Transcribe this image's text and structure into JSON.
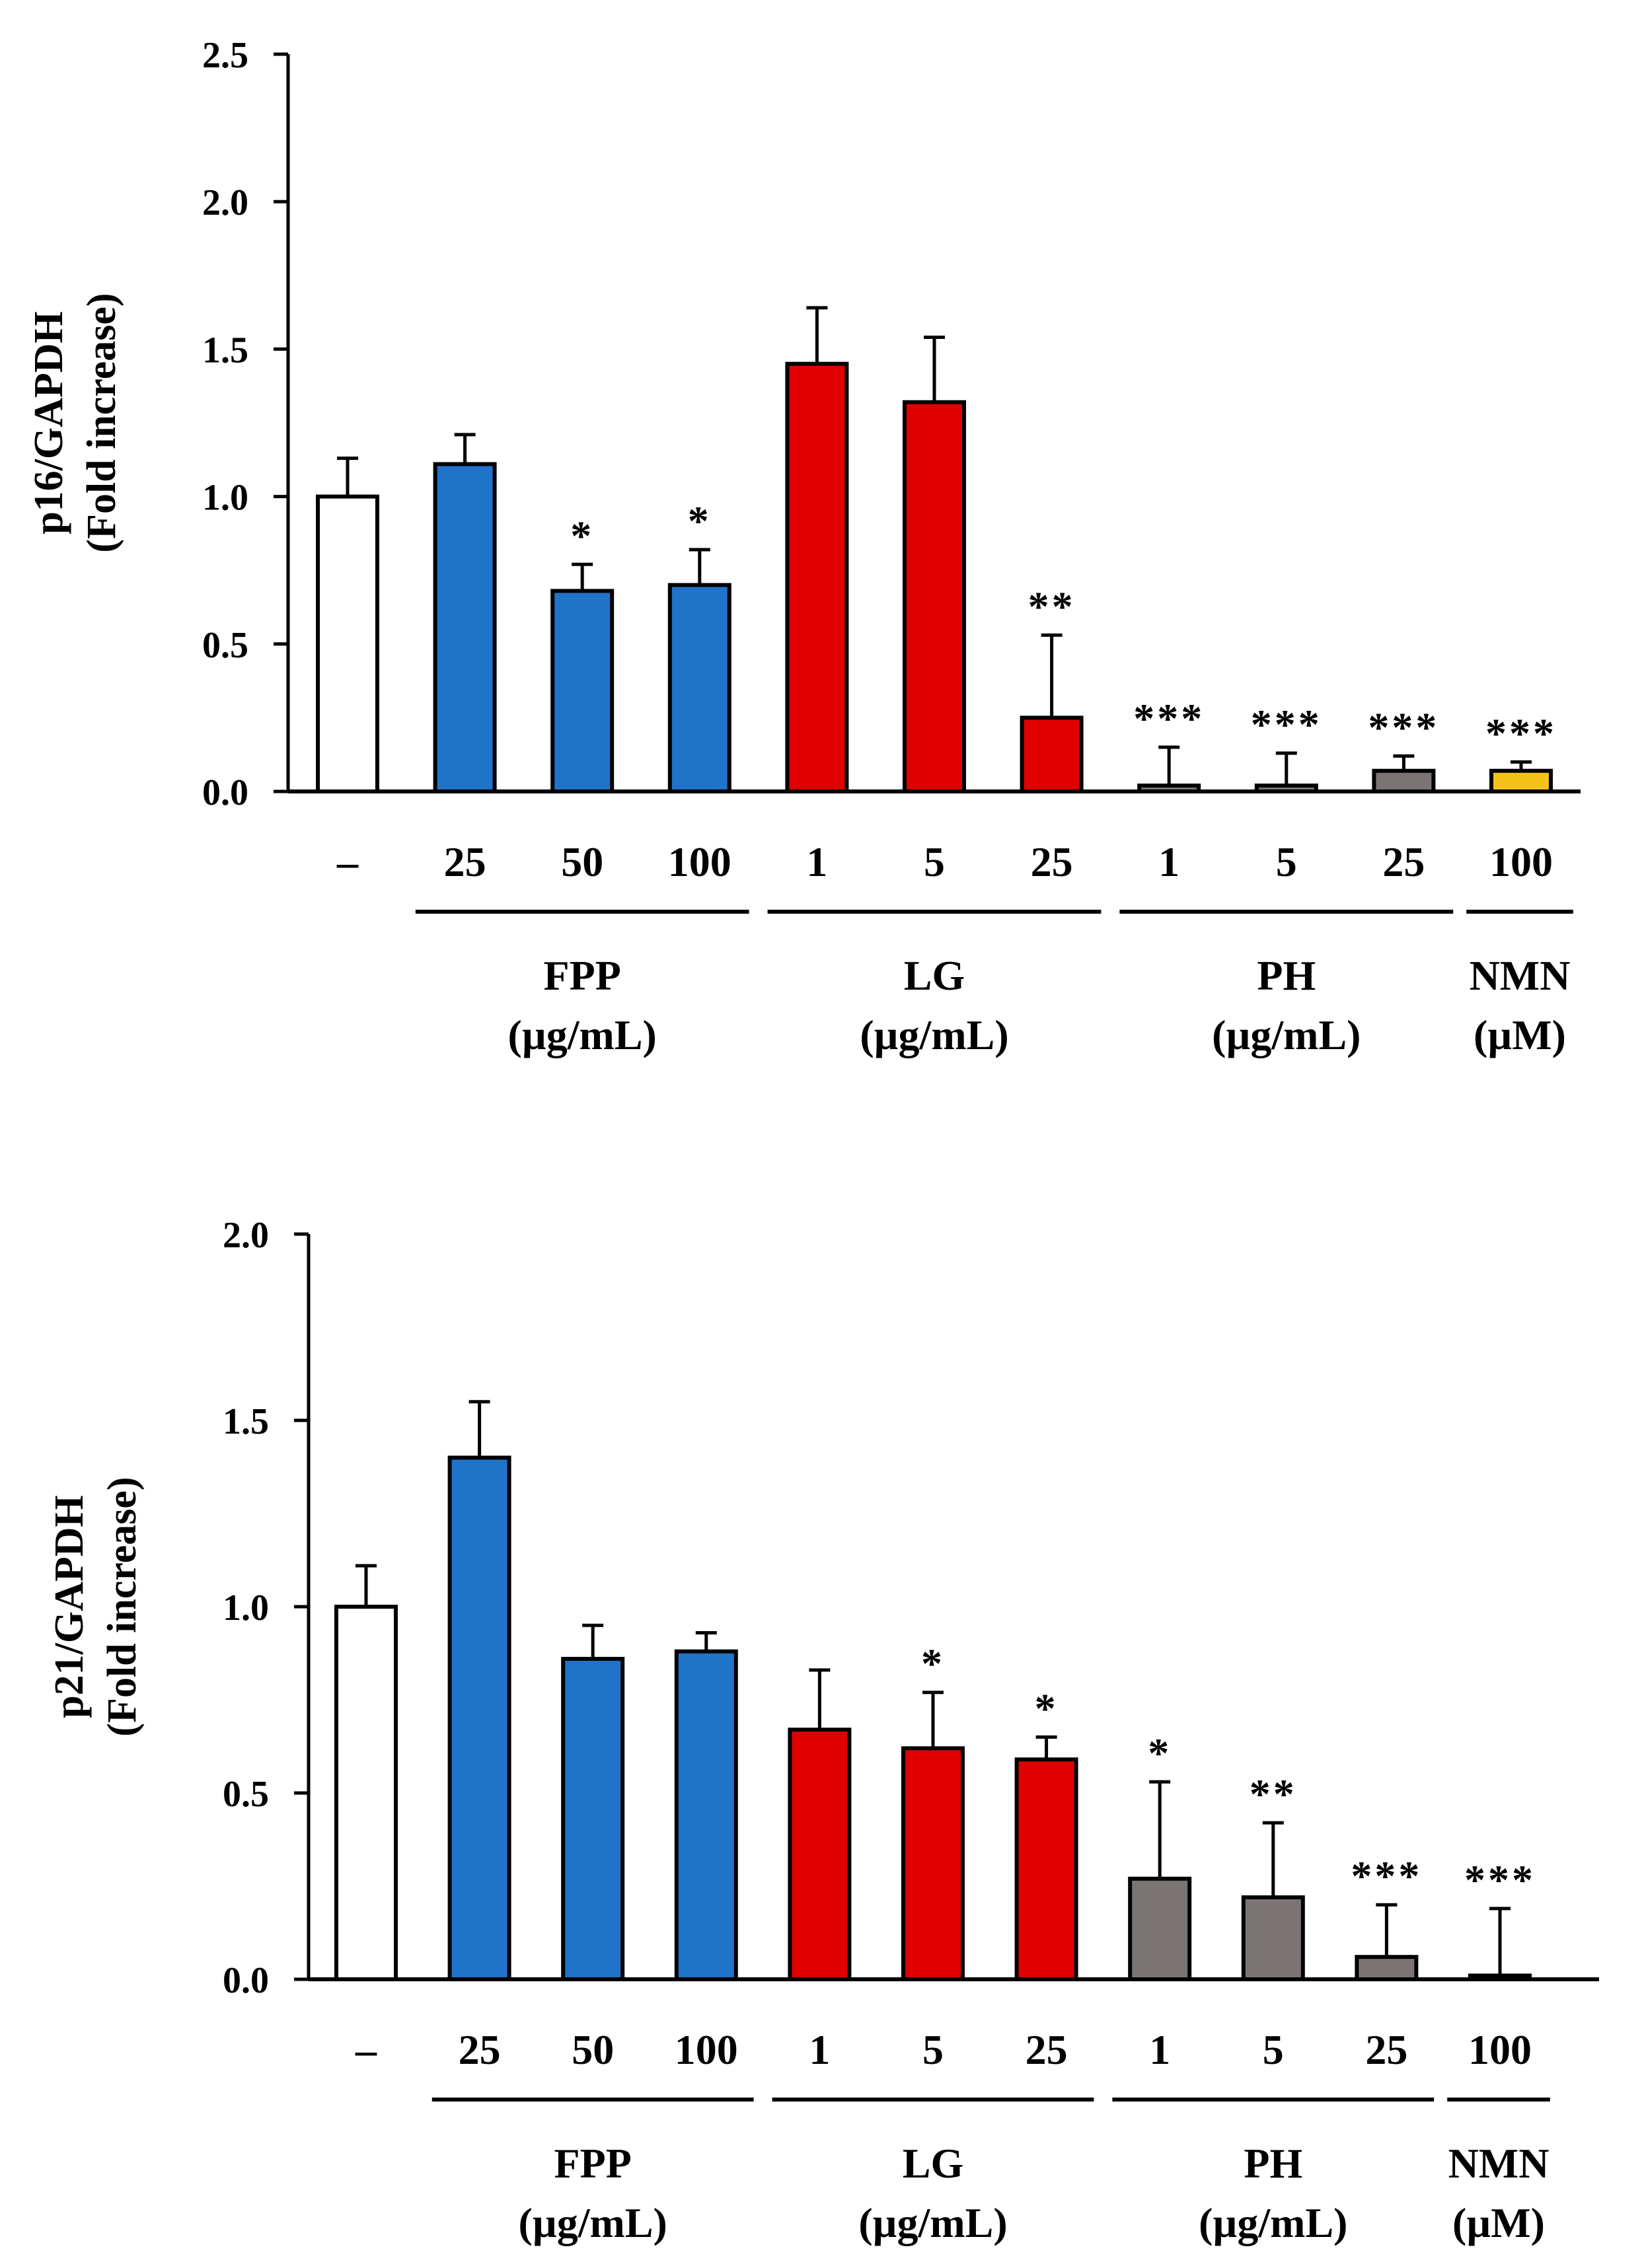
{
  "chart_data": [
    {
      "type": "bar",
      "ylabel_line1": "p16/GAPDH",
      "ylabel_line2": "(Fold increase)",
      "ylim": [
        0,
        2.5
      ],
      "yticks": [
        "0.0",
        "0.5",
        "1.0",
        "1.5",
        "2.0",
        "2.5"
      ],
      "ytick_values": [
        0,
        0.5,
        1.0,
        1.5,
        2.0,
        2.5
      ],
      "categories": [
        "–",
        "25",
        "50",
        "100",
        "1",
        "5",
        "25",
        "1",
        "5",
        "25",
        "100"
      ],
      "values": [
        1.0,
        1.11,
        0.68,
        0.7,
        1.45,
        1.32,
        0.25,
        0.02,
        0.02,
        0.07,
        0.07
      ],
      "errors": [
        0.13,
        0.1,
        0.09,
        0.12,
        0.19,
        0.22,
        0.28,
        0.13,
        0.11,
        0.05,
        0.03
      ],
      "significance": [
        "",
        "",
        "*",
        "*",
        "",
        "",
        "**",
        "***",
        "***",
        "***",
        "***"
      ],
      "bar_colors": [
        "#ffffff",
        "#1f73c9",
        "#1f73c9",
        "#1f73c9",
        "#e00000",
        "#e00000",
        "#e00000",
        "#7a7574",
        "#7a7574",
        "#7a7574",
        "#f5c21b"
      ],
      "groups": [
        {
          "name": "FPP",
          "unit": "(µg/mL)",
          "indices": [
            1,
            2,
            3
          ]
        },
        {
          "name": "LG",
          "unit": "(µg/mL)",
          "indices": [
            4,
            5,
            6
          ]
        },
        {
          "name": "PH",
          "unit": "(µg/mL)",
          "indices": [
            7,
            8,
            9
          ]
        },
        {
          "name": "NMN",
          "unit": "(µM)",
          "indices": [
            10
          ]
        }
      ]
    },
    {
      "type": "bar",
      "ylabel_line1": "p21/GAPDH",
      "ylabel_line2": "(Fold increase)",
      "ylim": [
        0,
        2.0
      ],
      "yticks": [
        "0.0",
        "0.5",
        "1.0",
        "1.5",
        "2.0"
      ],
      "ytick_values": [
        0,
        0.5,
        1.0,
        1.5,
        2.0
      ],
      "categories": [
        "–",
        "25",
        "50",
        "100",
        "1",
        "5",
        "25",
        "1",
        "5",
        "25",
        "100"
      ],
      "values": [
        1.0,
        1.4,
        0.86,
        0.88,
        0.67,
        0.62,
        0.59,
        0.27,
        0.22,
        0.06,
        0.01
      ],
      "errors": [
        0.11,
        0.15,
        0.09,
        0.05,
        0.16,
        0.15,
        0.06,
        0.26,
        0.2,
        0.14,
        0.18
      ],
      "significance": [
        "",
        "",
        "",
        "",
        "",
        "*",
        "*",
        "*",
        "**",
        "***",
        "***"
      ],
      "bar_colors": [
        "#ffffff",
        "#1f73c9",
        "#1f73c9",
        "#1f73c9",
        "#e00000",
        "#e00000",
        "#e00000",
        "#7a7574",
        "#7a7574",
        "#7a7574",
        "#7a7574"
      ],
      "groups": [
        {
          "name": "FPP",
          "unit": "(µg/mL)",
          "indices": [
            1,
            2,
            3
          ]
        },
        {
          "name": "LG",
          "unit": "(µg/mL)",
          "indices": [
            4,
            5,
            6
          ]
        },
        {
          "name": "PH",
          "unit": "(µg/mL)",
          "indices": [
            7,
            8,
            9
          ]
        },
        {
          "name": "NMN",
          "unit": "(µM)",
          "indices": [
            10
          ]
        }
      ]
    }
  ]
}
